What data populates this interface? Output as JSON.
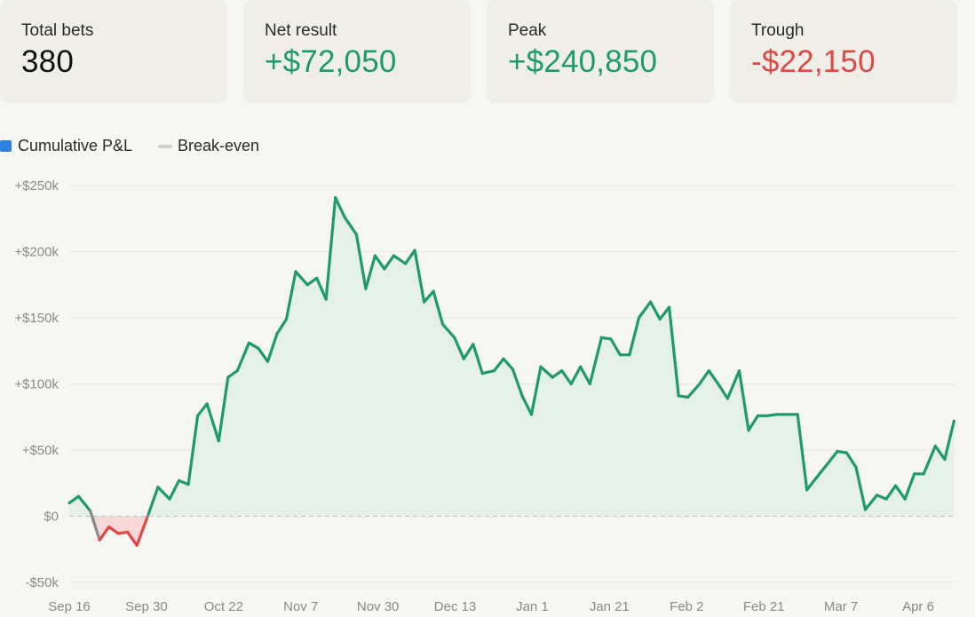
{
  "stats": [
    {
      "label": "Total bets",
      "value": "380",
      "tone": "neutral"
    },
    {
      "label": "Net result",
      "value": "+$72,050",
      "tone": "pos"
    },
    {
      "label": "Peak",
      "value": "+$240,850",
      "tone": "pos"
    },
    {
      "label": "Trough",
      "value": "-$22,150",
      "tone": "neg"
    }
  ],
  "legend": {
    "series": "Cumulative P&L",
    "baseline": "Break-even"
  },
  "colors": {
    "positive": "#1f9a6d",
    "negative": "#e04848",
    "crossing": "#8a8a8a",
    "legend_series": "#2f7fe0",
    "area_fill": "#e5f0ea",
    "negative_fill": "#f6d9d7",
    "baseline": "#cfcfcf",
    "grid": "#e6e6e2"
  },
  "chart_data": {
    "type": "area",
    "x_tick_labels": [
      "Sep 16",
      "Sep 30",
      "Oct 22",
      "Nov 7",
      "Nov 30",
      "Dec 13",
      "Jan 1",
      "Jan 21",
      "Feb 2",
      "Feb 21",
      "Mar 7",
      "Apr 6"
    ],
    "y_tick_labels": [
      "+$250k",
      "+$200k",
      "+$150k",
      "+$100k",
      "+$50k",
      "$0",
      "-$50k"
    ],
    "y_ticks": [
      250000,
      200000,
      150000,
      100000,
      50000,
      0,
      -50000
    ],
    "ylim": [
      -50000,
      250000
    ],
    "xlim": [
      0,
      380
    ],
    "baseline": 0,
    "grid": true,
    "legend_position": "top-left",
    "series": [
      {
        "name": "Cumulative P&L",
        "x": [
          0,
          4,
          9,
          13,
          17,
          21,
          25,
          29,
          34,
          38,
          43,
          47,
          51,
          55,
          59,
          64,
          68,
          72,
          77,
          81,
          85,
          89,
          93,
          97,
          102,
          106,
          110,
          114,
          118,
          123,
          127,
          131,
          135,
          139,
          144,
          148,
          152,
          156,
          160,
          165,
          169,
          173,
          177,
          182,
          186,
          190,
          194,
          198,
          202,
          207,
          211,
          215,
          219,
          223,
          228,
          232,
          236,
          240,
          244,
          249,
          253,
          257,
          261,
          265,
          270,
          274,
          278,
          282,
          287,
          291,
          295,
          299,
          303,
          308,
          312,
          316,
          320,
          325,
          329,
          333,
          337,
          341,
          346,
          350,
          354,
          358,
          362,
          366,
          371,
          375,
          379
        ],
        "y": [
          10000,
          15000,
          4000,
          -18000,
          -8000,
          -13000,
          -12000,
          -22000,
          2000,
          22000,
          13000,
          27000,
          24000,
          76000,
          85000,
          57000,
          105000,
          110000,
          131000,
          127000,
          117000,
          138000,
          149000,
          185000,
          175000,
          180000,
          164000,
          240850,
          226000,
          213000,
          172000,
          197000,
          187000,
          197000,
          191000,
          201000,
          162000,
          170000,
          145000,
          135000,
          119000,
          130000,
          108000,
          110000,
          119000,
          111000,
          91000,
          77000,
          113000,
          105000,
          110000,
          100000,
          113000,
          100000,
          135000,
          134000,
          122000,
          122000,
          150000,
          162000,
          149000,
          158000,
          91000,
          90000,
          100000,
          110000,
          100000,
          89000,
          110000,
          65000,
          76000,
          76000,
          77000,
          77000,
          77000,
          20000,
          29000,
          40000,
          49000,
          48000,
          37000,
          5000,
          16000,
          13000,
          23000,
          13000,
          32000,
          32000,
          53000,
          43000,
          72050
        ]
      }
    ]
  }
}
